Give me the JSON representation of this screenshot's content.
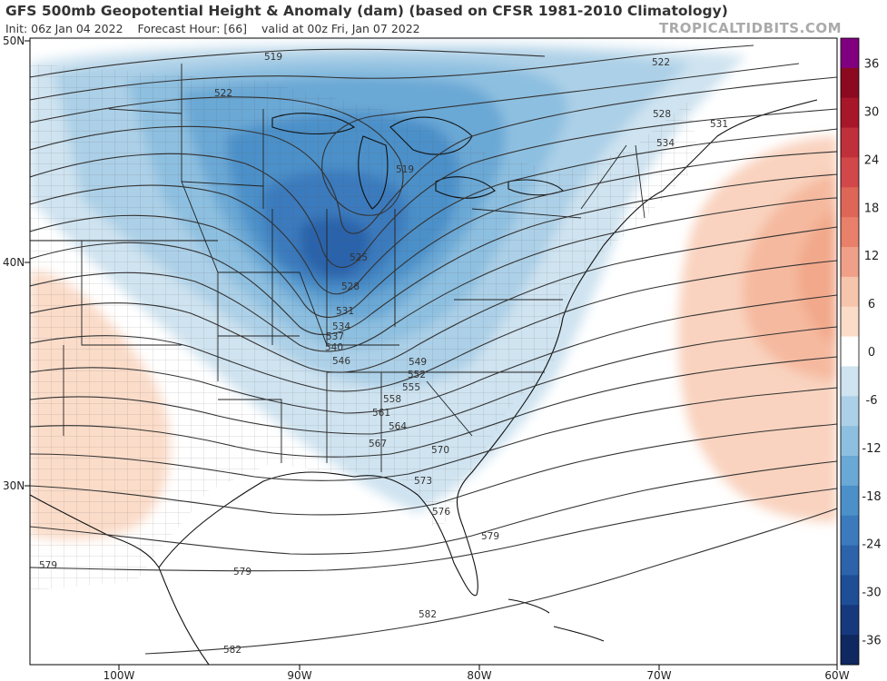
{
  "header": {
    "title": "GFS 500mb Geopotential Height & Anomaly (dam) (based on CFSR 1981-2010 Climatology)",
    "init": "Init: 06z Jan 04 2022",
    "forecast_hour": "Forecast Hour: [66]",
    "valid": "valid at 00z Fri, Jan 07 2022",
    "site": "TROPICALTIDBITS.COM"
  },
  "map": {
    "lat_labels": [
      "50N",
      "40N",
      "30N"
    ],
    "lon_labels": [
      "100W",
      "90W",
      "80W",
      "70W",
      "60W"
    ],
    "contour_labels": [
      "519",
      "522",
      "528",
      "531",
      "534",
      "519",
      "522",
      "525",
      "528",
      "531",
      "534",
      "537",
      "540",
      "546",
      "549",
      "552",
      "555",
      "558",
      "561",
      "564",
      "567",
      "570",
      "573",
      "576",
      "579",
      "579",
      "579",
      "582",
      "582"
    ]
  },
  "colorbar": {
    "ticks": [
      "36",
      "30",
      "24",
      "18",
      "12",
      "6",
      "0",
      "-6",
      "-12",
      "-18",
      "-24",
      "-30",
      "-36"
    ],
    "colors": {
      "positive": [
        "#800080",
        "#8b0a1f",
        "#a8162a",
        "#c0303a",
        "#d2484a",
        "#de6656",
        "#e8806a",
        "#f0a088",
        "#f7c4ac",
        "#fbdcc9"
      ],
      "neutral": "#ffffff",
      "negative": [
        "#cfe3f0",
        "#acd0e7",
        "#8dbfe0",
        "#6aa8d5",
        "#4c90c9",
        "#3b7abd",
        "#2c63ab",
        "#1e4e96",
        "#16397d",
        "#102860"
      ]
    }
  }
}
